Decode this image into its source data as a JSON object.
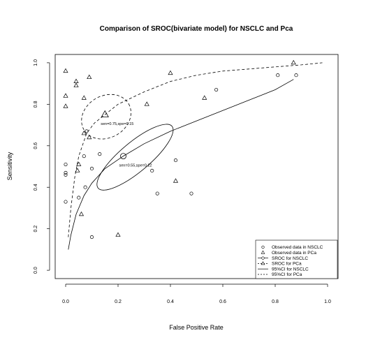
{
  "chart_data": {
    "type": "scatter",
    "title": "Comparison of SROC(bivariate model) for NSCLC and Pca",
    "xlabel": "False Positive Rate",
    "ylabel": "Sensitivity",
    "xlim": [
      -0.04,
      1.04
    ],
    "ylim": [
      -0.04,
      1.04
    ],
    "xticks": [
      "0.0",
      "0.2",
      "0.4",
      "0.6",
      "0.8",
      "1.0"
    ],
    "yticks": [
      "0.0",
      "0.2",
      "0.4",
      "0.6",
      "0.8",
      "1.0"
    ],
    "grid": false,
    "legend_position": "bottom-right",
    "legend": [
      {
        "label": "Observed data in NSCLC",
        "symbol": "circle",
        "line": "none"
      },
      {
        "label": "Observed data in PCa",
        "symbol": "triangle",
        "line": "none"
      },
      {
        "label": "SROC for NSCLC",
        "symbol": "circle",
        "line": "solid"
      },
      {
        "label": "SROC for PCa",
        "symbol": "triangle",
        "line": "dashed"
      },
      {
        "label": "95%CI for NSCLC",
        "symbol": "none",
        "line": "solid"
      },
      {
        "label": "95%CI for PCa",
        "symbol": "none",
        "line": "dashed"
      }
    ],
    "series": [
      {
        "name": "Observed data in NSCLC",
        "marker": "circle",
        "points": [
          [
            0.0,
            0.51
          ],
          [
            0.0,
            0.47
          ],
          [
            0.0,
            0.46
          ],
          [
            0.0,
            0.33
          ],
          [
            0.05,
            0.35
          ],
          [
            0.07,
            0.55
          ],
          [
            0.075,
            0.4
          ],
          [
            0.08,
            0.67
          ],
          [
            0.1,
            0.49
          ],
          [
            0.1,
            0.16
          ],
          [
            0.13,
            0.56
          ],
          [
            0.33,
            0.48
          ],
          [
            0.35,
            0.37
          ],
          [
            0.42,
            0.53
          ],
          [
            0.48,
            0.37
          ],
          [
            0.575,
            0.87
          ],
          [
            0.81,
            0.94
          ],
          [
            0.88,
            0.94
          ]
        ]
      },
      {
        "name": "Observed data in PCa",
        "marker": "triangle",
        "points": [
          [
            0.0,
            0.96
          ],
          [
            0.0,
            0.84
          ],
          [
            0.0,
            0.79
          ],
          [
            0.04,
            0.91
          ],
          [
            0.04,
            0.89
          ],
          [
            0.045,
            0.48
          ],
          [
            0.05,
            0.51
          ],
          [
            0.06,
            0.27
          ],
          [
            0.07,
            0.66
          ],
          [
            0.07,
            0.83
          ],
          [
            0.09,
            0.64
          ],
          [
            0.09,
            0.93
          ],
          [
            0.2,
            0.17
          ],
          [
            0.31,
            0.8
          ],
          [
            0.4,
            0.95
          ],
          [
            0.42,
            0.43
          ],
          [
            0.53,
            0.83
          ],
          [
            0.87,
            1.0
          ]
        ]
      },
      {
        "name": "SROC for NSCLC",
        "line": "solid",
        "curve": [
          [
            0.01,
            0.1
          ],
          [
            0.02,
            0.17
          ],
          [
            0.04,
            0.27
          ],
          [
            0.07,
            0.36
          ],
          [
            0.1,
            0.42
          ],
          [
            0.15,
            0.49
          ],
          [
            0.22,
            0.55
          ],
          [
            0.3,
            0.61
          ],
          [
            0.4,
            0.67
          ],
          [
            0.5,
            0.72
          ],
          [
            0.6,
            0.77
          ],
          [
            0.7,
            0.82
          ],
          [
            0.8,
            0.87
          ],
          [
            0.87,
            0.92
          ]
        ],
        "summary_point": {
          "x": 0.22,
          "y": 0.55,
          "label": "sen=0.55,spe=0.22"
        }
      },
      {
        "name": "SROC for PCa",
        "line": "dashed",
        "curve": [
          [
            0.01,
            0.16
          ],
          [
            0.02,
            0.3
          ],
          [
            0.035,
            0.45
          ],
          [
            0.05,
            0.55
          ],
          [
            0.08,
            0.66
          ],
          [
            0.11,
            0.71
          ],
          [
            0.15,
            0.75
          ],
          [
            0.2,
            0.8
          ],
          [
            0.3,
            0.86
          ],
          [
            0.4,
            0.91
          ],
          [
            0.5,
            0.94
          ],
          [
            0.6,
            0.96
          ],
          [
            0.7,
            0.97
          ],
          [
            0.8,
            0.98
          ],
          [
            0.9,
            0.99
          ],
          [
            0.98,
            1.0
          ]
        ],
        "summary_point": {
          "x": 0.15,
          "y": 0.75,
          "label": "sen=0.75,spe=0.15"
        }
      },
      {
        "name": "95%CI for NSCLC",
        "line": "solid",
        "curve": [
          [
            0.16,
            0.69
          ],
          [
            0.22,
            0.66
          ],
          [
            0.29,
            0.6
          ],
          [
            0.35,
            0.54
          ],
          [
            0.38,
            0.5
          ],
          [
            0.2,
            0.43
          ],
          [
            0.1,
            0.45
          ],
          [
            0.14,
            0.56
          ],
          [
            0.36,
            0.58
          ],
          [
            0.33,
            0.65
          ],
          [
            0.41,
            0.68
          ],
          [
            0.38,
            0.69
          ],
          [
            0.11,
            0.41
          ],
          [
            0.12,
            0.4
          ],
          [
            0.16,
            0.42
          ],
          [
            0.4,
            0.62
          ]
        ]
      },
      {
        "name": "95%CI for PCa",
        "line": "dashed",
        "curve": [
          [
            0.08,
            0.76
          ],
          [
            0.23,
            0.86
          ],
          [
            0.28,
            0.82
          ],
          [
            0.25,
            0.7
          ],
          [
            0.12,
            0.61
          ],
          [
            0.08,
            0.64
          ]
        ]
      }
    ]
  }
}
